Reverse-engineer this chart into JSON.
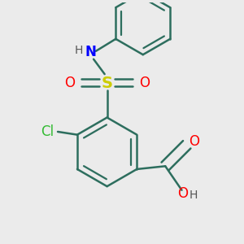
{
  "bg_color": "#ebebeb",
  "bond_color": "#2d6e5e",
  "bond_width": 1.8,
  "atom_colors": {
    "S": "#cccc00",
    "N": "#0000ff",
    "O": "#ff0000",
    "Cl": "#33bb33",
    "C": "#2d6e5e",
    "H": "#555555"
  },
  "font_size": 12,
  "font_size_h": 10,
  "font_size_s": 14
}
